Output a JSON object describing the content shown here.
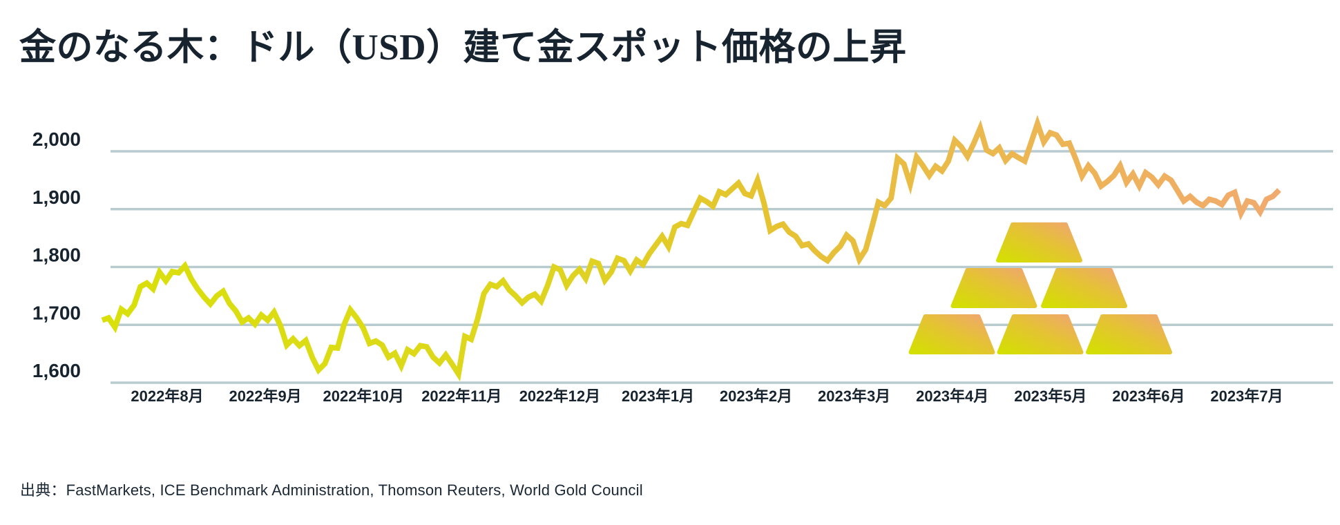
{
  "page": {
    "title": {
      "pre": "金のなる木：ドル（",
      "usd": "USD",
      "post": "）建て金スポット価格の上昇"
    },
    "source": "出典：FastMarkets, ICE Benchmark Administration, Thomson Reuters, World Gold Council"
  },
  "colors": {
    "background": "#ffffff",
    "text": "#17242f",
    "gridline": "#b8cccf",
    "line_gradient": [
      "#d9e00a",
      "#dcdb16",
      "#dfd321",
      "#e5c42f",
      "#eaba4a",
      "#eeb25b",
      "#f1aa6e"
    ],
    "gold_bar_gradient": [
      "#d3e000",
      "#e5c235",
      "#f0a573"
    ]
  },
  "chart_data": {
    "type": "line",
    "title": "金のなる木：ドル（USD）建て金スポット価格の上昇",
    "grid": "horizontal",
    "legend": "none",
    "ylim": [
      1600,
      2060
    ],
    "y_ticks": [
      {
        "value": 2000,
        "label": "2,000"
      },
      {
        "value": 1900,
        "label": "1,900"
      },
      {
        "value": 1800,
        "label": "1,800"
      },
      {
        "value": 1700,
        "label": "1,700"
      },
      {
        "value": 1600,
        "label": "1,600"
      }
    ],
    "x_tick_labels": [
      "2022年8月",
      "2022年9月",
      "2022年10月",
      "2022年11月",
      "2022年12月",
      "2023年1月",
      "2023年2月",
      "2023年3月",
      "2023年4月",
      "2023年5月",
      "2023年6月",
      "2023年7月"
    ],
    "series": [
      {
        "name": "gold-spot-price-usd",
        "values": [
          1708,
          1712,
          1696,
          1727,
          1719,
          1734,
          1766,
          1772,
          1762,
          1791,
          1776,
          1792,
          1790,
          1802,
          1779,
          1762,
          1748,
          1736,
          1750,
          1758,
          1737,
          1724,
          1705,
          1712,
          1701,
          1717,
          1708,
          1722,
          1699,
          1665,
          1676,
          1664,
          1673,
          1644,
          1622,
          1633,
          1661,
          1660,
          1700,
          1726,
          1712,
          1695,
          1668,
          1672,
          1665,
          1644,
          1651,
          1629,
          1657,
          1650,
          1664,
          1662,
          1644,
          1634,
          1648,
          1632,
          1615,
          1680,
          1675,
          1710,
          1754,
          1770,
          1766,
          1776,
          1760,
          1750,
          1738,
          1748,
          1753,
          1741,
          1768,
          1800,
          1795,
          1768,
          1785,
          1796,
          1780,
          1810,
          1806,
          1777,
          1791,
          1815,
          1811,
          1793,
          1812,
          1804,
          1823,
          1838,
          1853,
          1835,
          1869,
          1875,
          1872,
          1896,
          1919,
          1913,
          1905,
          1930,
          1925,
          1935,
          1945,
          1927,
          1923,
          1950,
          1911,
          1863,
          1870,
          1874,
          1860,
          1853,
          1837,
          1840,
          1828,
          1818,
          1811,
          1825,
          1836,
          1855,
          1845,
          1813,
          1830,
          1870,
          1912,
          1906,
          1919,
          1988,
          1978,
          1943,
          1990,
          1975,
          1958,
          1974,
          1966,
          1983,
          2019,
          2008,
          1991,
          2014,
          2040,
          2002,
          1996,
          2006,
          1984,
          1996,
          1989,
          1983,
          2015,
          2048,
          2016,
          2032,
          2028,
          2012,
          2014,
          1987,
          1957,
          1975,
          1962,
          1940,
          1948,
          1958,
          1975,
          1946,
          1961,
          1940,
          1963,
          1955,
          1942,
          1957,
          1950,
          1932,
          1914,
          1922,
          1912,
          1906,
          1917,
          1914,
          1908,
          1924,
          1929,
          1893,
          1914,
          1911,
          1895,
          1917,
          1922,
          1933
        ]
      }
    ],
    "gold_bars_icon": {
      "count": 6,
      "rows": [
        1,
        2,
        3
      ]
    }
  }
}
